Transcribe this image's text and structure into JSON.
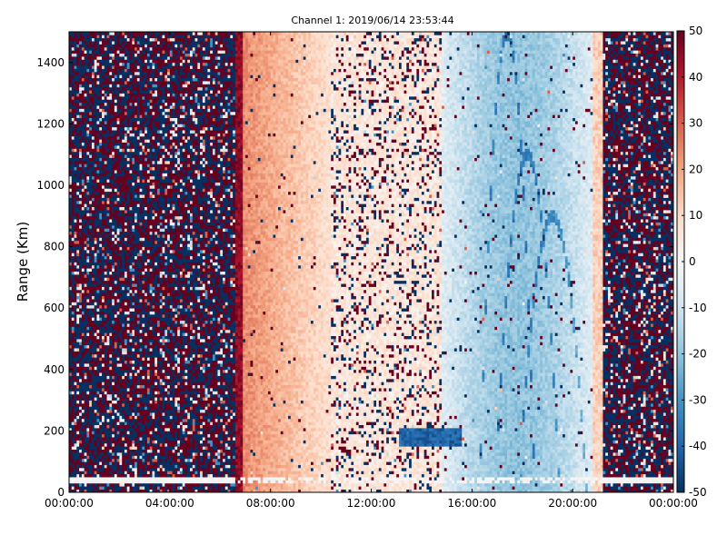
{
  "chart_data": {
    "type": "heatmap",
    "title": "Channel 1: 2019/06/14 23:53:44",
    "xlabel": "",
    "ylabel": "Range (Km)",
    "x_tick_labels": [
      "00:00:00",
      "04:00:00",
      "08:00:00",
      "12:00:00",
      "16:00:00",
      "20:00:00",
      "00:00:00"
    ],
    "x_ticks_hours": [
      0,
      4,
      8,
      12,
      16,
      20,
      24
    ],
    "xlim_hours": [
      0,
      24
    ],
    "y_ticks": [
      0,
      200,
      400,
      600,
      800,
      1000,
      1200,
      1400
    ],
    "ylim": [
      0,
      1500
    ],
    "colorbar": {
      "ticks": [
        50,
        40,
        30,
        20,
        10,
        0,
        -10,
        -20,
        -30,
        -40,
        -50
      ],
      "range": [
        -50,
        50
      ],
      "colormap": "diverging blue-white-red (RdBu_r)",
      "colors": {
        "low": "#053061",
        "mid": "#f7f7f7",
        "high": "#67001f"
      }
    },
    "grid": false,
    "regions": [
      {
        "hours": [
          0,
          6.6
        ],
        "pattern": "noise, saturated values between -50 and 50"
      },
      {
        "hours": [
          6.6,
          6.9
        ],
        "pattern": "strong positive band, about 40 to 50"
      },
      {
        "hours": [
          6.9,
          10.4
        ],
        "pattern": "positive, about 10 to 25, weakening with time"
      },
      {
        "hours": [
          10.4,
          14.8
        ],
        "pattern": "scattered saturated speckles over slightly positive background"
      },
      {
        "hours": [
          14.8,
          20.8
        ],
        "pattern": "negative, about -5 to -25, with darker blue arcs"
      },
      {
        "hours": [
          20.8,
          21.2
        ],
        "pattern": "weak positive band"
      },
      {
        "hours": [
          21.2,
          24
        ],
        "pattern": "noise, saturated values between -50 and 50"
      }
    ],
    "features": [
      {
        "type": "band",
        "hours": [
          13.1,
          15.6
        ],
        "range_km": [
          155,
          210
        ],
        "value": -45
      },
      {
        "type": "band",
        "hours": [
          0,
          24
        ],
        "range_km": [
          35,
          48
        ],
        "value": 0
      }
    ]
  }
}
